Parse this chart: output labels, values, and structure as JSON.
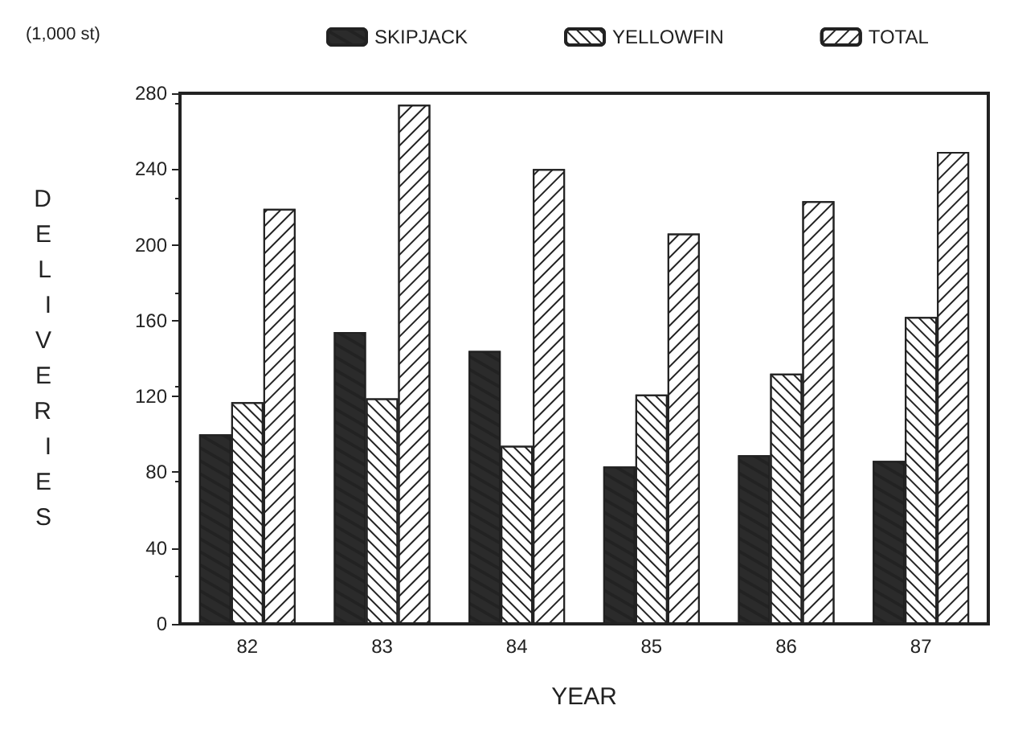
{
  "chart_data": {
    "type": "bar",
    "xlabel": "YEAR",
    "ylabel": "DELIVERIES",
    "annotations": [
      "(1,000 st)"
    ],
    "categories": [
      "82",
      "83",
      "84",
      "85",
      "86",
      "87"
    ],
    "series": [
      {
        "name": "SKIPJACK",
        "color": "#2b2b2b",
        "values": [
          100,
          154,
          144,
          83,
          89,
          86
        ]
      },
      {
        "name": "YELLOWFIN",
        "color": "#ffffff",
        "values": [
          117,
          119,
          94,
          121,
          132,
          162
        ]
      },
      {
        "name": "TOTAL",
        "color": "#ffffff",
        "values": [
          219,
          274,
          240,
          206,
          223,
          249
        ]
      }
    ],
    "ylim": [
      0,
      280
    ],
    "yticks": [
      0,
      40,
      80,
      120,
      160,
      200,
      240,
      280
    ],
    "grid": false,
    "legend": "top"
  }
}
